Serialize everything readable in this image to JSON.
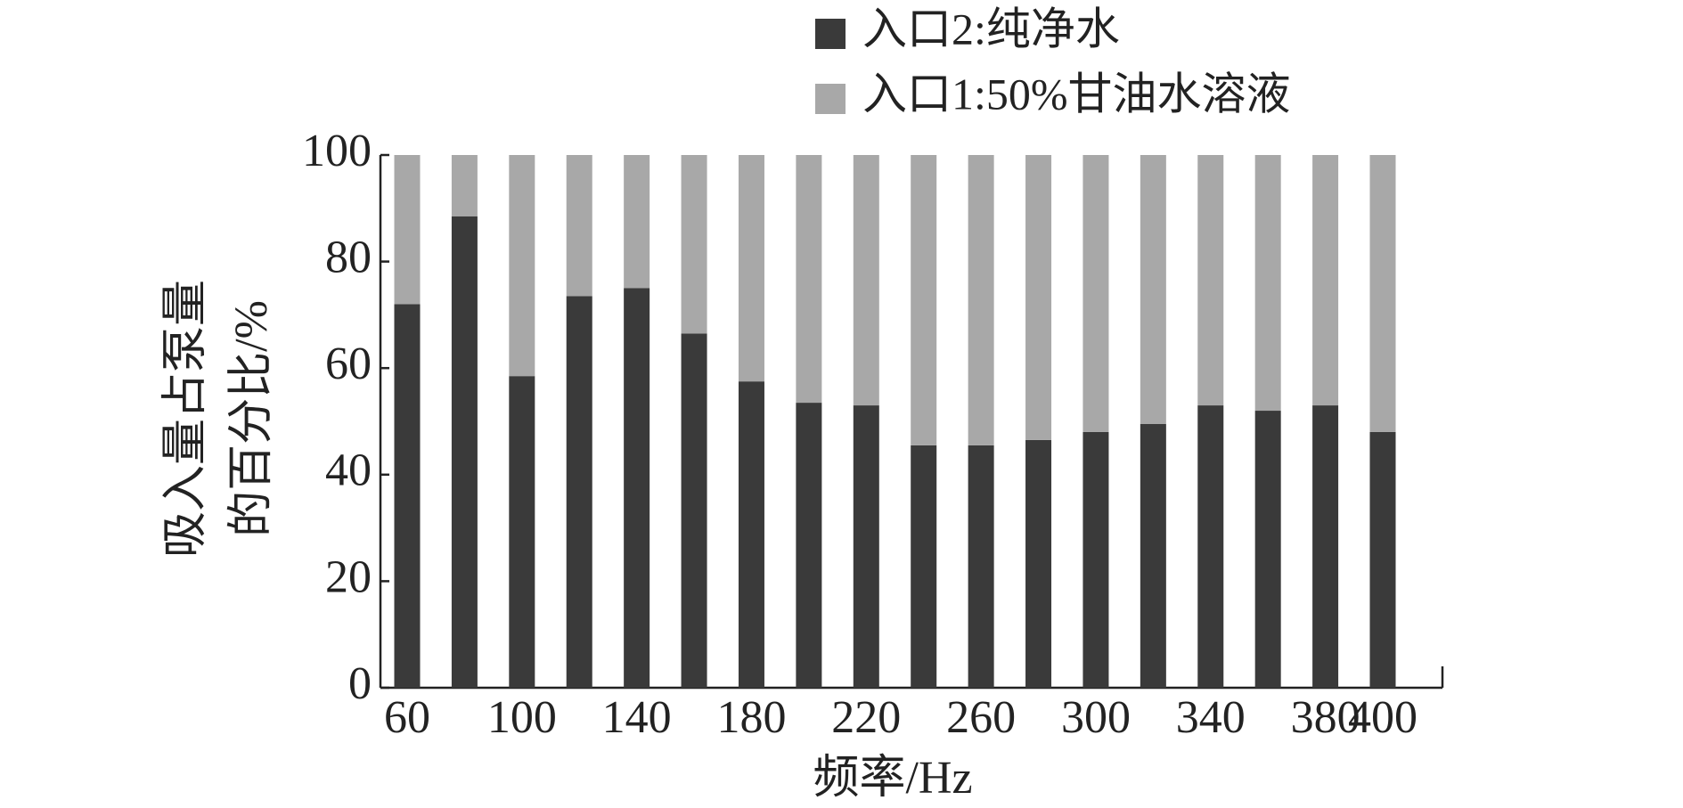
{
  "chart_data": {
    "type": "stacked_bar",
    "x_label": "频率/Hz",
    "y_label": [
      "吸入量占泵量",
      "的百分比/%"
    ],
    "categories": [
      "60",
      null,
      "100",
      null,
      "140",
      null,
      "180",
      null,
      "220",
      null,
      "260",
      null,
      "300",
      null,
      "340",
      null,
      "380",
      "400"
    ],
    "series": [
      {
        "name": "入口2:纯净水",
        "color": "#3a3a3a",
        "values": [
          72,
          88.5,
          58.5,
          73.5,
          75,
          66.5,
          57.5,
          53.5,
          53,
          45.5,
          45.5,
          46.5,
          48,
          49.5,
          53,
          52,
          53,
          48
        ]
      },
      {
        "name": "入口1:50%甘油水溶液",
        "color": "#a8a8a8",
        "values": [
          28,
          11.5,
          41.5,
          26.5,
          25,
          33.5,
          42.5,
          46.5,
          47,
          54.5,
          54.5,
          53.5,
          52,
          50.5,
          47,
          48,
          47,
          52
        ]
      }
    ],
    "ylim": [
      0,
      100
    ],
    "yticks": [
      0,
      20,
      40,
      60,
      80,
      100
    ],
    "legend": "top"
  }
}
